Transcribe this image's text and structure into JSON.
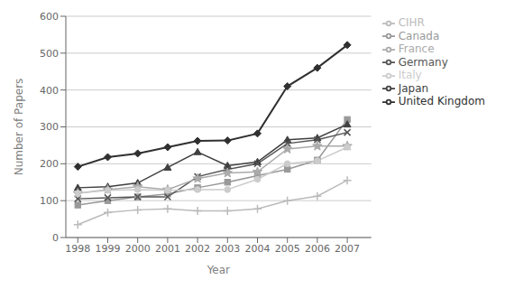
{
  "chart_data": {
    "type": "line",
    "xlabel": "Year",
    "ylabel": "Number of Papers",
    "x": [
      1998,
      1999,
      2000,
      2001,
      2002,
      2003,
      2004,
      2005,
      2006,
      2007
    ],
    "series": [
      {
        "name": "United Kingdom",
        "color": "#303030",
        "marker": "diamond",
        "values": [
          192,
          218,
          228,
          245,
          262,
          263,
          282,
          410,
          460,
          522
        ]
      },
      {
        "name": "Canada",
        "color": "#999999",
        "marker": "square",
        "values": [
          88,
          100,
          110,
          118,
          135,
          150,
          168,
          185,
          210,
          320
        ]
      },
      {
        "name": "Japan",
        "color": "#404040",
        "marker": "triangle",
        "values": [
          135,
          138,
          148,
          190,
          232,
          195,
          205,
          265,
          270,
          307
        ]
      },
      {
        "name": "Germany",
        "color": "#555555",
        "marker": "x",
        "values": [
          105,
          108,
          110,
          110,
          165,
          185,
          200,
          255,
          265,
          285
        ]
      },
      {
        "name": "France",
        "color": "#aaaaaa",
        "marker": "star",
        "values": [
          120,
          130,
          138,
          130,
          160,
          175,
          178,
          240,
          248,
          248
        ]
      },
      {
        "name": "Italy",
        "color": "#cccccc",
        "marker": "circle",
        "values": [
          120,
          128,
          130,
          128,
          130,
          130,
          158,
          200,
          208,
          245
        ]
      },
      {
        "name": "CIHR",
        "color": "#bbbbbb",
        "marker": "plus",
        "values": [
          35,
          68,
          75,
          78,
          72,
          72,
          78,
          100,
          112,
          155
        ]
      }
    ],
    "xlim": [
      1997.6,
      2007.8
    ],
    "xticks": [
      1998,
      1999,
      2000,
      2001,
      2002,
      2003,
      2004,
      2005,
      2006,
      2007
    ],
    "ylim": [
      0,
      600
    ],
    "yticks": [
      0,
      100,
      200,
      300,
      400,
      500,
      600
    ],
    "grid": true,
    "legend": "upper right"
  }
}
